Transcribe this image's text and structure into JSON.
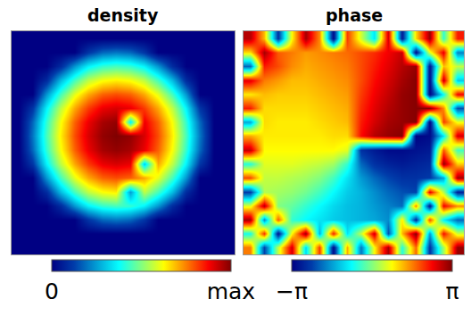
{
  "chart_data": [
    {
      "type": "heatmap",
      "title": "density",
      "color": "jet",
      "tick_labels": false,
      "colorbar": {
        "range": [
          0,
          1
        ],
        "ticks": [
          0,
          {
            "value": 1,
            "label": "max"
          }
        ]
      },
      "cells": [
        [
          0,
          0,
          0,
          0,
          0,
          0,
          0,
          0,
          0,
          0,
          0,
          0,
          0,
          0,
          0,
          0
        ],
        [
          0,
          0,
          0,
          0,
          0,
          0.11,
          0.18,
          0.2,
          0.18,
          0.11,
          0,
          0,
          0,
          0,
          0,
          0
        ],
        [
          0,
          0,
          0,
          0.09,
          0.24,
          0.36,
          0.42,
          0.44,
          0.42,
          0.36,
          0.24,
          0.09,
          0,
          0,
          0,
          0
        ],
        [
          0,
          0,
          0.09,
          0.29,
          0.44,
          0.56,
          0.62,
          0.64,
          0.62,
          0.56,
          0.44,
          0.29,
          0.09,
          0,
          0,
          0
        ],
        [
          0,
          0,
          0.24,
          0.44,
          0.6,
          0.71,
          0.78,
          0.8,
          0.78,
          0.71,
          0.6,
          0.44,
          0.24,
          0,
          0,
          0
        ],
        [
          0,
          0.11,
          0.36,
          0.56,
          0.71,
          0.82,
          0.89,
          0.91,
          0.89,
          0.82,
          0.71,
          0.56,
          0.36,
          0.11,
          0,
          0
        ],
        [
          0,
          0.18,
          0.42,
          0.62,
          0.78,
          0.89,
          0.96,
          0.98,
          0.35,
          0.89,
          0.78,
          0.62,
          0.42,
          0.18,
          0,
          0
        ],
        [
          0,
          0.2,
          0.44,
          0.64,
          0.8,
          0.91,
          0.98,
          1,
          0.98,
          0.91,
          0.8,
          0.64,
          0.44,
          0.2,
          0,
          0
        ],
        [
          0,
          0.18,
          0.42,
          0.62,
          0.78,
          0.89,
          0.96,
          0.98,
          0.96,
          0.89,
          0.78,
          0.62,
          0.42,
          0.18,
          0,
          0
        ],
        [
          0,
          0.11,
          0.36,
          0.56,
          0.71,
          0.82,
          0.89,
          0.91,
          0.89,
          0.3,
          0.71,
          0.56,
          0.36,
          0.11,
          0,
          0
        ],
        [
          0,
          0,
          0.24,
          0.44,
          0.6,
          0.71,
          0.78,
          0.8,
          0.78,
          0.71,
          0.6,
          0.44,
          0.24,
          0,
          0,
          0
        ],
        [
          0,
          0,
          0.09,
          0.29,
          0.44,
          0.56,
          0.62,
          0.64,
          0.25,
          0.56,
          0.44,
          0.29,
          0.09,
          0,
          0,
          0
        ],
        [
          0,
          0,
          0,
          0.09,
          0.24,
          0.36,
          0.42,
          0.44,
          0.42,
          0.36,
          0.24,
          0.09,
          0,
          0,
          0,
          0
        ],
        [
          0,
          0,
          0,
          0,
          0,
          0.11,
          0.18,
          0.2,
          0.18,
          0.11,
          0,
          0,
          0,
          0,
          0,
          0
        ],
        [
          0,
          0,
          0,
          0,
          0,
          0,
          0,
          0,
          0,
          0,
          0,
          0,
          0,
          0,
          0,
          0
        ],
        [
          0,
          0,
          0,
          0,
          0,
          0,
          0,
          0,
          0,
          0,
          0,
          0,
          0,
          0,
          0,
          0
        ]
      ]
    },
    {
      "type": "heatmap",
      "title": "phase",
      "color": "jet",
      "tick_labels": false,
      "colorbar": {
        "range": [
          -3.14159,
          3.14159
        ],
        "ticks": [
          {
            "value": -3.14159,
            "label": "−π"
          },
          {
            "value": 3.14159,
            "label": "π"
          }
        ]
      },
      "cells": [
        [
          2.8,
          1.2,
          -2.5,
          0.8,
          2.9,
          1.5,
          -3.0,
          2.0,
          0.5,
          -1.0,
          2.6,
          -2.8,
          1.0,
          3.0,
          -0.5,
          2.2
        ],
        [
          1.0,
          2.9,
          1.8,
          1.6,
          1.4,
          1.5,
          1.6,
          1.7,
          1.9,
          2.1,
          2.4,
          2.7,
          -3.0,
          0.6,
          2.5,
          -1.8
        ],
        [
          -2.0,
          2.2,
          1.9,
          1.5,
          1.3,
          1.4,
          1.5,
          1.6,
          1.9,
          2.2,
          2.5,
          2.8,
          3.0,
          -2.9,
          1.2,
          0.4
        ],
        [
          2.5,
          1.6,
          1.4,
          1.2,
          1.2,
          1.3,
          1.4,
          1.5,
          1.9,
          2.3,
          2.6,
          2.9,
          3.1,
          -3.0,
          2.7,
          -1.2
        ],
        [
          0.9,
          1.2,
          1.1,
          1.1,
          1.1,
          1.2,
          1.3,
          1.4,
          2.0,
          2.4,
          2.7,
          3.0,
          3.1,
          -3.1,
          -0.8,
          2.4
        ],
        [
          2.2,
          1.0,
          1.0,
          1.0,
          1.0,
          1.1,
          1.2,
          1.3,
          2.1,
          2.5,
          2.8,
          3.0,
          3.1,
          3.1,
          1.5,
          -2.2
        ],
        [
          -1.5,
          1.0,
          0.9,
          0.9,
          0.9,
          1.0,
          1.1,
          1.2,
          2.2,
          2.6,
          2.9,
          3.0,
          3.1,
          -3.1,
          2.0,
          0.7
        ],
        [
          1.3,
          0.9,
          0.9,
          0.9,
          0.9,
          0.9,
          1.0,
          1.0,
          2.3,
          2.8,
          3.0,
          3.1,
          -3.1,
          -3.0,
          -1.0,
          2.6
        ],
        [
          2.7,
          0.8,
          0.8,
          0.8,
          0.8,
          0.8,
          0.8,
          0.6,
          -2.5,
          -2.8,
          -3.0,
          -3.0,
          -2.9,
          -2.8,
          1.8,
          -0.4
        ],
        [
          -0.6,
          0.6,
          0.6,
          0.6,
          0.5,
          0.4,
          0.2,
          -0.5,
          -2.0,
          -2.5,
          -2.7,
          -2.8,
          -2.7,
          -2.6,
          3.0,
          1.1
        ],
        [
          1.9,
          0.4,
          0.4,
          0.3,
          0.2,
          0.0,
          -0.4,
          -1.0,
          -1.6,
          -2.0,
          -2.3,
          -2.5,
          -2.5,
          -2.4,
          -1.5,
          2.9
        ],
        [
          -2.4,
          0.3,
          0.2,
          0.1,
          -0.1,
          -0.4,
          -0.8,
          -1.2,
          -1.4,
          -1.7,
          -2.0,
          -2.2,
          -2.3,
          2.5,
          0.3,
          -2.7
        ],
        [
          0.6,
          2.8,
          0.0,
          -0.2,
          -0.5,
          -0.8,
          -1.1,
          -1.3,
          -1.4,
          -1.6,
          -1.8,
          -2.0,
          1.5,
          -2.9,
          2.4,
          1.5
        ],
        [
          2.9,
          -1.7,
          1.8,
          -0.5,
          -0.8,
          -1.0,
          -1.2,
          -1.3,
          -1.4,
          -1.5,
          -1.7,
          0.9,
          -2.6,
          1.9,
          -0.9,
          -2.0
        ],
        [
          -0.7,
          2.1,
          -2.9,
          0.8,
          3.0,
          -1.4,
          2.2,
          -1.0,
          0.4,
          2.7,
          -2.2,
          1.2,
          3.1,
          -1.6,
          2.3,
          0.5
        ],
        [
          1.6,
          -2.3,
          0.4,
          2.6,
          -1.1,
          2.0,
          -3.0,
          1.3,
          -1.9,
          0.8,
          2.9,
          -0.6,
          1.7,
          -2.5,
          0.2,
          3.0
        ]
      ]
    }
  ]
}
